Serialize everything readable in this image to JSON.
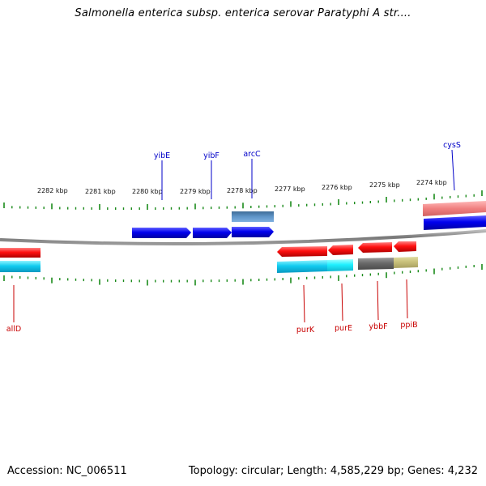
{
  "title": "Salmonella enterica subsp. enterica serovar Paratyphi A str....",
  "footer": {
    "accession": "Accession: NC_006511",
    "summary": "Topology: circular; Length: 4,585,229 bp; Genes: 4,232"
  },
  "colors": {
    "backbone": "#888888",
    "tick": "#1a8a1a",
    "label_blue": "#0000c8",
    "label_red": "#c80000"
  },
  "ruler_labels": [
    "2282 kbp",
    "2281 kbp",
    "2280 kbp",
    "2279 kbp",
    "2278 kbp",
    "2277 kbp",
    "2276 kbp",
    "2275 kbp",
    "2274 kbp"
  ],
  "gene_labels": {
    "top": [
      "yibE",
      "yibF",
      "arcC",
      "cysS"
    ],
    "bottom": [
      "allD",
      "purK",
      "purE",
      "ybbF",
      "ppiB"
    ]
  }
}
